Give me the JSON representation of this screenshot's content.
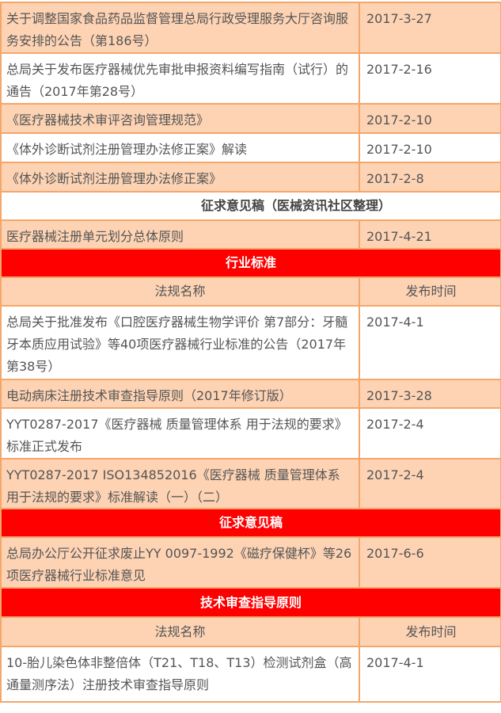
{
  "colors": {
    "peach": "#fdd3b4",
    "red": "#ff0000",
    "border": "#f5a66a",
    "text": "#555555"
  },
  "rows": [
    {
      "type": "peach",
      "name": "关于调整国家食品药品监督管理总局行政受理服务大厅咨询服务安排的公告（第186号）",
      "date": "2017-3-27",
      "h": 64
    },
    {
      "type": "white",
      "name": "总局关于发布医疗器械优先审批申报资料编写指南（试行）的通告（2017年第28号）",
      "date": "2017-2-16",
      "h": 64
    },
    {
      "type": "peach",
      "name": "《医疗器械技术审评咨询管理规范》",
      "date": "2017-2-10",
      "h": 37
    },
    {
      "type": "white",
      "name": "《体外诊断试剂注册管理办法修正案》解读",
      "date": "2017-2-10",
      "h": 37
    },
    {
      "type": "peach",
      "name": "《体外诊断试剂注册管理办法修正案》",
      "date": "2017-2-8",
      "h": 37
    },
    {
      "type": "sub",
      "title": "征求意见稿（医械资讯社区整理）",
      "h": 36
    },
    {
      "type": "peach",
      "name": "医疗器械注册单元划分总体原则",
      "date": "2017-4-21",
      "h": 36
    },
    {
      "type": "red",
      "title": "行业标准",
      "h": 36
    },
    {
      "type": "header",
      "col1": "法规名称",
      "col2": "发布时间",
      "h": 36
    },
    {
      "type": "white",
      "name": "总局关于批准发布《口腔医疗器械生物学评价 第7部分：牙髓牙本质应用试验》等40项医疗器械行业标准的公告（2017年第38号）",
      "date": "2017-4-1",
      "h": 93
    },
    {
      "type": "peach",
      "name": "电动病床注册技术审查指导原则（2017年修订版）",
      "date": "2017-3-28",
      "h": 36
    },
    {
      "type": "white",
      "name": "YYT0287-2017《医疗器械 质量管理体系 用于法规的要求》标准正式发布",
      "date": "2017-2-4",
      "h": 62
    },
    {
      "type": "peach",
      "name": "YYT0287-2017  ISO134852016《医疗器械 质量管理体系 用于法规的要求》标准解读（一）（二）",
      "date": "2017-2-4",
      "h": 61
    },
    {
      "type": "red",
      "title": "征求意见稿",
      "h": 36
    },
    {
      "type": "peach",
      "name": "总局办公厅公开征求废止YY 0097-1992《磁疗保健杯》等26项医疗器械行业标准意见",
      "date": "2017-6-6",
      "h": 63
    },
    {
      "type": "red",
      "title": "技术审查指导原则",
      "h": 37
    },
    {
      "type": "header",
      "col1": "法规名称",
      "col2": "发布时间",
      "h": 37
    },
    {
      "type": "white",
      "name": "10-胎儿染色体非整倍体（T21、T18、T13）检测试剂盒（高通量测序法）注册技术审查指导原则",
      "date": "2017-4-1",
      "h": 70
    }
  ]
}
